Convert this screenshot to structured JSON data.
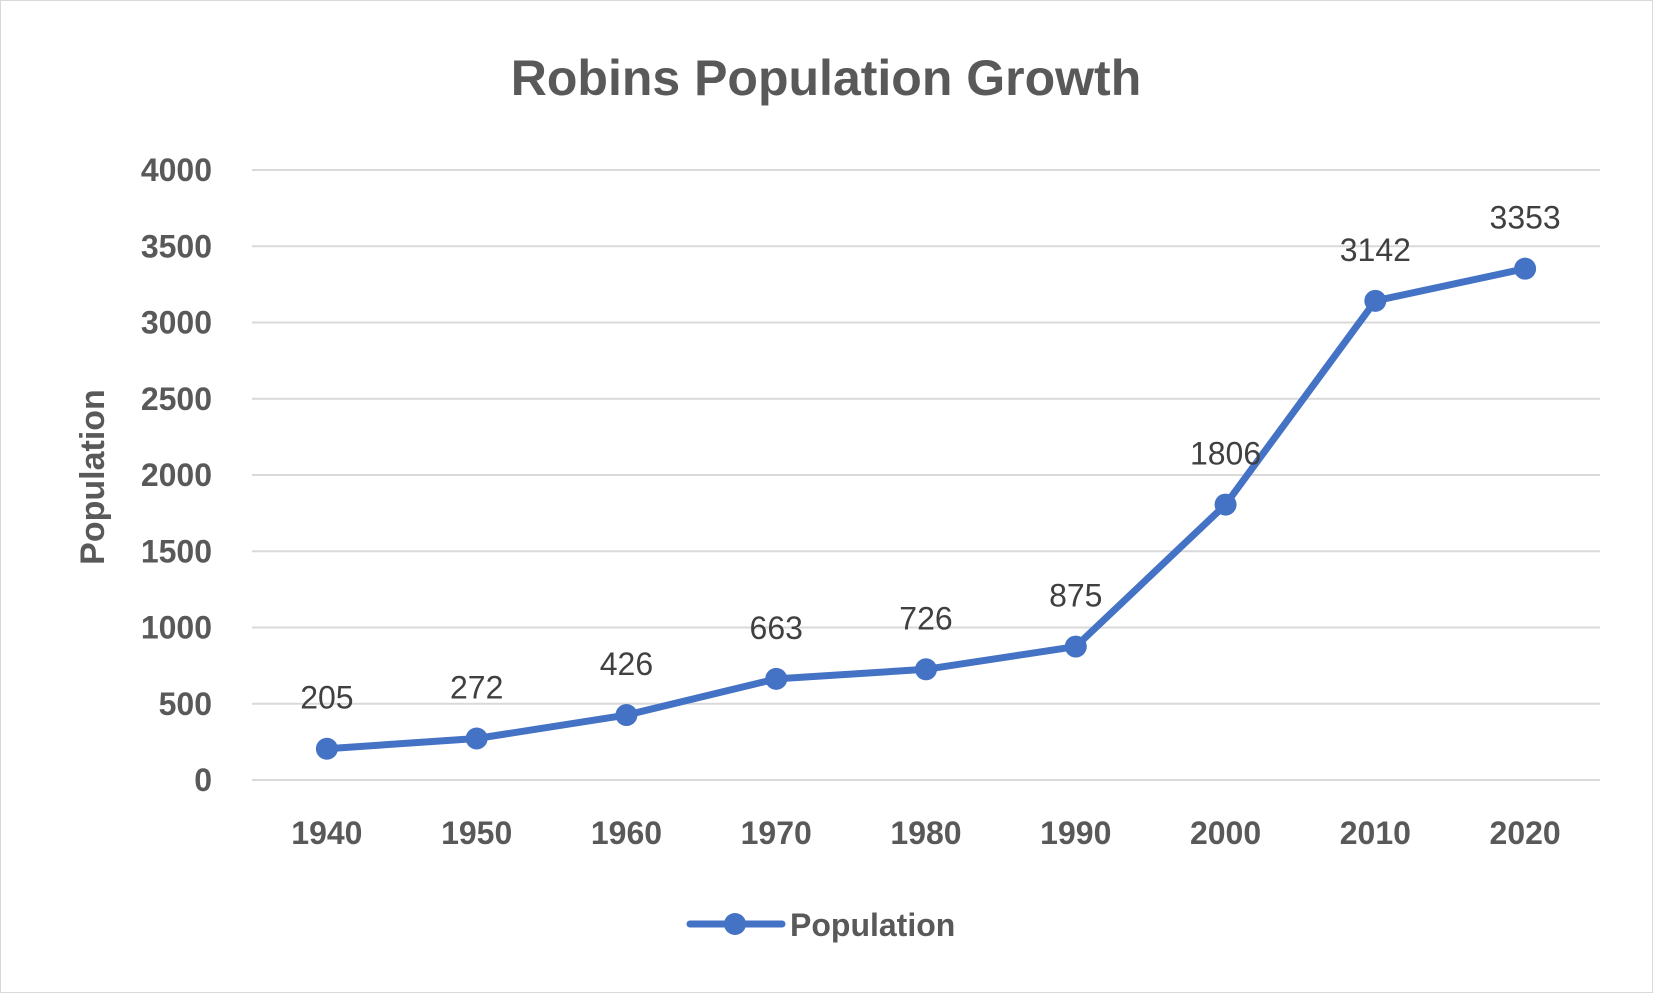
{
  "chart_data": {
    "type": "line",
    "title": "Robins Population Growth",
    "xlabel": "",
    "ylabel": "Population",
    "categories": [
      "1940",
      "1950",
      "1960",
      "1970",
      "1980",
      "1990",
      "2000",
      "2010",
      "2020"
    ],
    "series": [
      {
        "name": "Population",
        "values": [
          205,
          272,
          426,
          663,
          726,
          875,
          1806,
          3142,
          3353
        ],
        "color": "#4472c4"
      }
    ],
    "ylim": [
      0,
      4000
    ],
    "yticks": [
      "0",
      "500",
      "1000",
      "1500",
      "2000",
      "2500",
      "3000",
      "3500",
      "4000"
    ],
    "grid": true,
    "legend_position": "bottom",
    "data_labels": [
      "205",
      "272",
      "426",
      "663",
      "726",
      "875",
      "1806",
      "3142",
      "3353"
    ]
  }
}
